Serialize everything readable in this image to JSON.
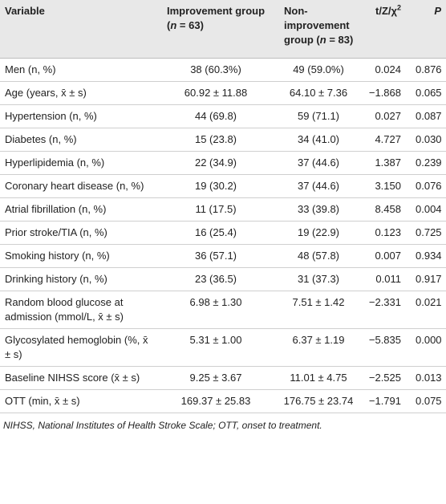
{
  "table": {
    "header": [
      [
        {
          "text": "Variable"
        }
      ],
      [
        {
          "text": "Improvement group ("
        },
        {
          "text": "n",
          "italic": true
        },
        {
          "text": " = 63)"
        }
      ],
      [
        {
          "text": "Non-improvement group ("
        },
        {
          "text": "n",
          "italic": true
        },
        {
          "text": " = 83)"
        }
      ],
      [
        {
          "text": "t/Z/χ"
        },
        {
          "text": "2",
          "sup": true
        }
      ],
      [
        {
          "text": "P",
          "italic": true
        }
      ]
    ],
    "rows": [
      [
        "Men (n, %)",
        "38 (60.3%)",
        "49 (59.0%)",
        "0.024",
        "0.876"
      ],
      [
        "Age (years, x̄ ± s)",
        "60.92 ± 11.88",
        "64.10 ± 7.36",
        "−1.868",
        "0.065"
      ],
      [
        "Hypertension (n, %)",
        "44 (69.8)",
        "59 (71.1)",
        "0.027",
        "0.087"
      ],
      [
        "Diabetes (n, %)",
        "15 (23.8)",
        "34 (41.0)",
        "4.727",
        "0.030"
      ],
      [
        "Hyperlipidemia (n, %)",
        "22 (34.9)",
        "37 (44.6)",
        "1.387",
        "0.239"
      ],
      [
        "Coronary heart disease (n, %)",
        "19 (30.2)",
        "37 (44.6)",
        "3.150",
        "0.076"
      ],
      [
        "Atrial fibrillation (n, %)",
        "11 (17.5)",
        "33 (39.8)",
        "8.458",
        "0.004"
      ],
      [
        "Prior stroke/TIA (n, %)",
        "16 (25.4)",
        "19 (22.9)",
        "0.123",
        "0.725"
      ],
      [
        "Smoking history (n, %)",
        "36 (57.1)",
        "48 (57.8)",
        "0.007",
        "0.934"
      ],
      [
        "Drinking history (n, %)",
        "23 (36.5)",
        "31 (37.3)",
        "0.011",
        "0.917"
      ],
      [
        "Random blood glucose at admission (mmol/L, x̄ ± s)",
        "6.98 ± 1.30",
        "7.51 ± 1.42",
        "−2.331",
        "0.021"
      ],
      [
        "Glycosylated hemoglobin (%, x̄ ± s)",
        "5.31 ± 1.00",
        "6.37 ± 1.19",
        "−5.835",
        "0.000"
      ],
      [
        "Baseline NIHSS score (x̄ ± s)",
        "9.25 ± 3.67",
        "11.01 ± 4.75",
        "−2.525",
        "0.013"
      ],
      [
        "OTT (min, x̄ ± s)",
        "169.37 ± 25.83",
        "176.75 ± 23.74",
        "−1.791",
        "0.075"
      ]
    ],
    "footnote": "NIHSS, National Institutes of Health Stroke Scale; OTT, onset to treatment."
  }
}
